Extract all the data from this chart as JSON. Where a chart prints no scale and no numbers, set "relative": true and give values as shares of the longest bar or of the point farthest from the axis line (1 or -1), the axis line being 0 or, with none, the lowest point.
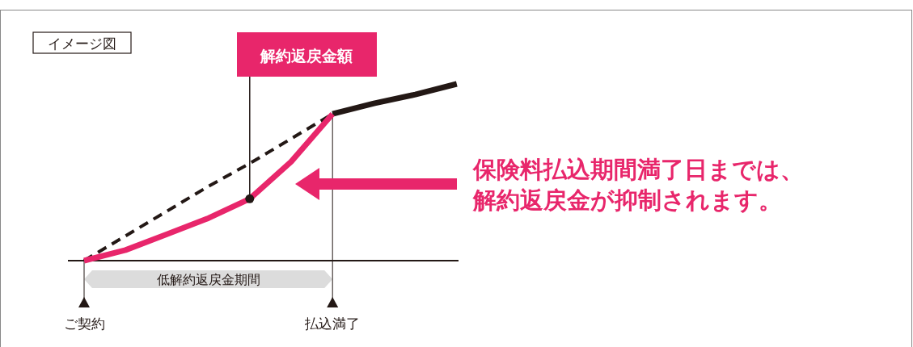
{
  "chart_data": {
    "type": "line",
    "relative": true,
    "categories": [
      "ご契約",
      null,
      null,
      null,
      null,
      null,
      "払込満了",
      null,
      null,
      null
    ],
    "series": [
      {
        "color": "#231815",
        "line_style": "dashed",
        "values": [
          0,
          0.14,
          0.28,
          0.42,
          0.55,
          0.69,
          0.83,
          null,
          null,
          null
        ]
      },
      {
        "color": "#231815",
        "line_style": "solid",
        "values": [
          null,
          null,
          null,
          null,
          null,
          null,
          0.83,
          0.89,
          0.94,
          1
        ]
      },
      {
        "color": "#e8266b",
        "line_style": "solid",
        "values": [
          0,
          0.06,
          0.15,
          0.24,
          0.35,
          0.56,
          0.83,
          null,
          null,
          null
        ]
      }
    ],
    "annotations": [
      "イメージ図",
      "解約返戻金額",
      "保険料払込期間満了日までは、解約返戻金が抑制されます。",
      "低解約返戻金期間"
    ]
  }
}
